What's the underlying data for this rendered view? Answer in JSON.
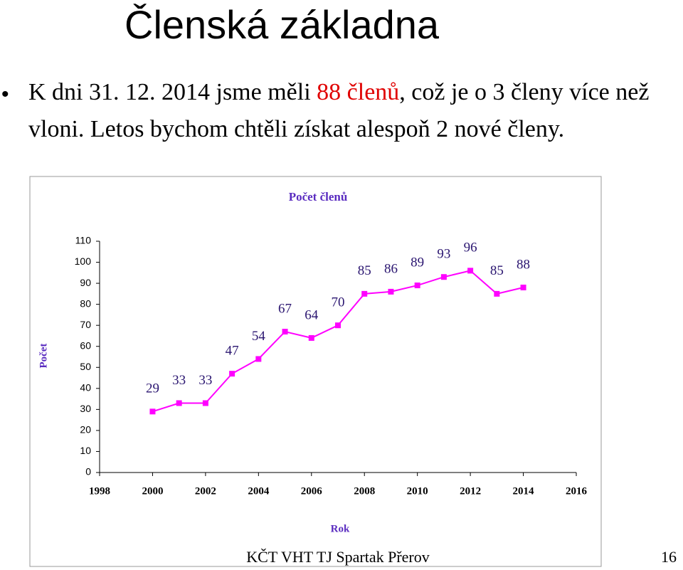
{
  "slide_title": "Členská základna",
  "bullet": [
    "K dni 31. 12. 2014 jsme měli ",
    "88 členů",
    ", což je o 3 členy více než vloni. Letos bychom chtěli získat alespoň 2 nové členy."
  ],
  "footer": "KČT VHT TJ Spartak Přerov",
  "page_number": "16",
  "chart_data": {
    "type": "line",
    "title": "Počet členů",
    "x_label": "Rok",
    "y_label": "Počet",
    "x": [
      2000,
      2001,
      2002,
      2003,
      2004,
      2005,
      2006,
      2007,
      2008,
      2009,
      2010,
      2011,
      2012,
      2013,
      2014
    ],
    "series": [
      {
        "name": "Počet členů",
        "color": "#ff00ff",
        "values": [
          29,
          33,
          33,
          47,
          54,
          67,
          64,
          70,
          85,
          86,
          89,
          93,
          96,
          85,
          88
        ]
      }
    ],
    "xlim": [
      1998,
      2016
    ],
    "xticks": [
      1998,
      2000,
      2002,
      2004,
      2006,
      2008,
      2010,
      2012,
      2014,
      2016
    ],
    "ylim": [
      0,
      110
    ],
    "yticks": [
      0,
      10,
      20,
      30,
      40,
      50,
      60,
      70,
      80,
      90,
      100,
      110
    ]
  }
}
